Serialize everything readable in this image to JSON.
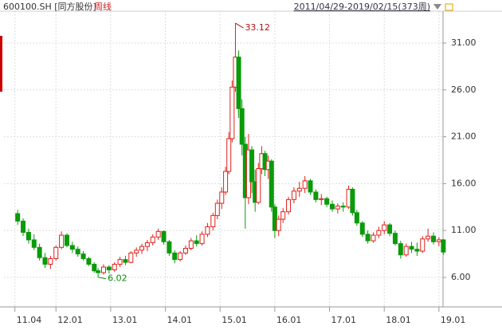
{
  "chart_data": {
    "type": "candlestick",
    "title": "600100.SH [同方股份]",
    "subtitle": "周线",
    "range": "2011/04/29-2019/02/15(373周)",
    "up_color": "#e0201a",
    "down_color": "#0a9a0a",
    "xlim": [
      2011.05,
      2019.06
    ],
    "ylim": [
      2.85,
      34.4
    ],
    "yticks": [
      {
        "value": 6,
        "label": "6.00"
      },
      {
        "value": 11,
        "label": "11.00"
      },
      {
        "value": 16,
        "label": "16.00"
      },
      {
        "value": 21,
        "label": "21.00"
      },
      {
        "value": 26,
        "label": "26.00"
      },
      {
        "value": 31,
        "label": "31.00"
      }
    ],
    "xticks": [
      {
        "value": 2011.25,
        "label": "11.04"
      },
      {
        "value": 2012,
        "label": "12.01"
      },
      {
        "value": 2013,
        "label": "13.01"
      },
      {
        "value": 2014,
        "label": "14.01"
      },
      {
        "value": 2015,
        "label": "15.01"
      },
      {
        "value": 2016,
        "label": "16.01"
      },
      {
        "value": 2017,
        "label": "17.01"
      },
      {
        "value": 2018,
        "label": "18.01"
      },
      {
        "value": 2019,
        "label": "19.01"
      }
    ],
    "grid": true,
    "x": [
      2011.3,
      2011.4,
      2011.5,
      2011.6,
      2011.7,
      2011.8,
      2011.9,
      2012.0,
      2012.1,
      2012.2,
      2012.3,
      2012.4,
      2012.5,
      2012.6,
      2012.7,
      2012.77,
      2012.87,
      2012.97,
      2013.07,
      2013.17,
      2013.27,
      2013.37,
      2013.47,
      2013.57,
      2013.67,
      2013.77,
      2013.87,
      2013.97,
      2014.07,
      2014.17,
      2014.27,
      2014.37,
      2014.47,
      2014.57,
      2014.67,
      2014.77,
      2014.87,
      2014.95,
      2015.03,
      2015.1,
      2015.16,
      2015.22,
      2015.28,
      2015.34,
      2015.4,
      2015.46,
      2015.52,
      2015.58,
      2015.64,
      2015.7,
      2015.76,
      2015.82,
      2015.88,
      2015.94,
      2016.0,
      2016.07,
      2016.15,
      2016.25,
      2016.35,
      2016.45,
      2016.55,
      2016.65,
      2016.75,
      2016.85,
      2016.95,
      2017.05,
      2017.15,
      2017.25,
      2017.35,
      2017.42,
      2017.5,
      2017.6,
      2017.7,
      2017.8,
      2017.9,
      2018.0,
      2018.1,
      2018.2,
      2018.3,
      2018.4,
      2018.5,
      2018.6,
      2018.7,
      2018.8,
      2018.9,
      2019.0,
      2019.08
    ],
    "open": [
      12.8,
      12.0,
      10.8,
      10.0,
      9.2,
      8.1,
      7.4,
      8.0,
      9.2,
      10.5,
      9.4,
      9.0,
      8.5,
      8.0,
      7.4,
      6.7,
      6.5,
      7.1,
      6.8,
      7.4,
      7.9,
      7.6,
      8.6,
      8.9,
      9.3,
      9.7,
      10.3,
      10.9,
      9.8,
      8.6,
      7.9,
      8.6,
      9.1,
      9.9,
      9.6,
      10.6,
      11.4,
      12.6,
      13.9,
      15.1,
      17.3,
      20.8,
      26.3,
      29.5,
      24.0,
      20.2,
      14.5,
      19.6,
      16.2,
      14.0,
      17.6,
      19.2,
      17.5,
      18.4,
      13.5,
      11.0,
      12.2,
      13.0,
      14.3,
      15.2,
      15.5,
      16.3,
      15.1,
      14.3,
      14.4,
      13.8,
      13.3,
      13.6,
      13.5,
      15.4,
      12.9,
      11.8,
      10.6,
      9.9,
      10.5,
      11.0,
      11.6,
      10.7,
      9.6,
      8.4,
      9.3,
      9.0,
      8.8,
      10.1,
      10.4,
      9.8,
      10.0
    ],
    "high": [
      13.2,
      12.3,
      11.2,
      10.6,
      9.6,
      8.6,
      8.3,
      9.4,
      10.9,
      10.7,
      9.8,
      9.3,
      8.8,
      8.2,
      7.6,
      7.0,
      7.4,
      7.3,
      7.6,
      8.2,
      8.3,
      8.8,
      9.2,
      9.6,
      10.0,
      10.6,
      11.2,
      11.0,
      10.0,
      8.9,
      8.8,
      9.4,
      10.2,
      10.5,
      10.9,
      11.8,
      12.9,
      14.3,
      15.6,
      17.8,
      21.5,
      27.0,
      33.12,
      30.2,
      25.0,
      21.0,
      21.3,
      20.0,
      17.5,
      18.2,
      20.0,
      19.5,
      19.0,
      18.6,
      13.8,
      12.6,
      13.4,
      14.6,
      15.6,
      16.2,
      16.8,
      16.5,
      15.4,
      14.9,
      14.6,
      14.2,
      13.9,
      14.0,
      15.8,
      15.6,
      13.2,
      12.0,
      11.0,
      10.8,
      11.4,
      12.0,
      11.8,
      11.0,
      9.9,
      9.6,
      9.8,
      9.7,
      10.4,
      11.2,
      10.8,
      10.3,
      10.1
    ],
    "low": [
      11.6,
      10.4,
      9.6,
      8.9,
      7.8,
      7.0,
      6.9,
      7.8,
      9.0,
      9.2,
      8.6,
      8.2,
      7.8,
      7.2,
      6.5,
      6.02,
      6.3,
      6.4,
      6.6,
      7.1,
      7.3,
      7.5,
      8.2,
      8.5,
      8.8,
      9.4,
      10.0,
      9.5,
      8.3,
      7.5,
      7.7,
      8.4,
      8.9,
      9.3,
      9.4,
      10.3,
      11.0,
      12.2,
      13.3,
      14.8,
      17.0,
      20.4,
      25.8,
      23.0,
      19.0,
      11.2,
      13.8,
      15.0,
      13.0,
      13.8,
      17.0,
      16.8,
      16.5,
      13.0,
      10.2,
      10.4,
      11.8,
      12.7,
      13.9,
      14.6,
      15.0,
      14.8,
      14.0,
      13.7,
      13.5,
      13.0,
      12.8,
      13.0,
      13.3,
      12.6,
      11.5,
      10.3,
      9.6,
      9.7,
      10.2,
      10.6,
      10.4,
      9.4,
      8.0,
      8.2,
      8.6,
      8.3,
      8.6,
      9.8,
      9.5,
      9.3,
      8.4
    ],
    "close": [
      12.0,
      10.8,
      10.0,
      9.2,
      8.1,
      7.4,
      8.0,
      9.2,
      10.5,
      9.4,
      9.0,
      8.5,
      8.0,
      7.4,
      6.7,
      6.5,
      7.1,
      6.8,
      7.4,
      7.9,
      7.6,
      8.6,
      8.9,
      9.3,
      9.7,
      10.3,
      10.9,
      9.8,
      8.6,
      7.9,
      8.6,
      9.1,
      9.9,
      9.6,
      10.6,
      11.4,
      12.6,
      13.9,
      15.1,
      17.3,
      20.8,
      26.3,
      29.5,
      24.0,
      20.2,
      14.5,
      19.6,
      16.2,
      14.0,
      17.6,
      19.2,
      17.5,
      18.4,
      13.5,
      11.0,
      12.2,
      13.0,
      14.3,
      15.2,
      15.5,
      16.3,
      15.1,
      14.3,
      14.4,
      13.8,
      13.3,
      13.6,
      13.5,
      15.4,
      12.9,
      11.8,
      10.6,
      9.9,
      10.5,
      11.0,
      11.6,
      10.7,
      9.6,
      8.4,
      9.3,
      9.0,
      8.8,
      10.1,
      10.4,
      9.8,
      10.0,
      8.7
    ],
    "annotations": [
      {
        "x": 2015.28,
        "value": 33.12,
        "color": "#b01010"
      },
      {
        "x": 2012.77,
        "value": 6.02,
        "color": "#0a8a0a"
      }
    ]
  }
}
